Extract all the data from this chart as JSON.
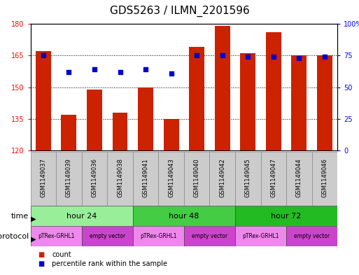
{
  "title": "GDS5263 / ILMN_2201596",
  "samples": [
    "GSM1149037",
    "GSM1149039",
    "GSM1149036",
    "GSM1149038",
    "GSM1149041",
    "GSM1149043",
    "GSM1149040",
    "GSM1149042",
    "GSM1149045",
    "GSM1149047",
    "GSM1149044",
    "GSM1149046"
  ],
  "counts": [
    167,
    137,
    149,
    138,
    150,
    135,
    169,
    179,
    166,
    176,
    165,
    165
  ],
  "percentiles": [
    75,
    62,
    64,
    62,
    64,
    61,
    75,
    75,
    74,
    74,
    73,
    74
  ],
  "ylim_left": [
    120,
    180
  ],
  "ylim_right": [
    0,
    100
  ],
  "yticks_left": [
    120,
    135,
    150,
    165,
    180
  ],
  "yticks_right": [
    0,
    25,
    50,
    75,
    100
  ],
  "ytick_labels_right": [
    "0",
    "25",
    "50",
    "75",
    "100%"
  ],
  "bar_color": "#cc2200",
  "dot_color": "#0000cc",
  "time_groups": [
    {
      "label": "hour 24",
      "start": 0,
      "end": 3,
      "color": "#99ee99"
    },
    {
      "label": "hour 48",
      "start": 4,
      "end": 7,
      "color": "#44cc44"
    },
    {
      "label": "hour 72",
      "start": 8,
      "end": 11,
      "color": "#22bb22"
    }
  ],
  "protocol_groups": [
    {
      "label": "pTRex-GRHL1",
      "start": 0,
      "end": 1,
      "color": "#ee88ee"
    },
    {
      "label": "empty vector",
      "start": 2,
      "end": 3,
      "color": "#cc44cc"
    },
    {
      "label": "pTRex-GRHL1",
      "start": 4,
      "end": 5,
      "color": "#ee88ee"
    },
    {
      "label": "empty vector",
      "start": 6,
      "end": 7,
      "color": "#cc44cc"
    },
    {
      "label": "pTRex-GRHL1",
      "start": 8,
      "end": 9,
      "color": "#ee88ee"
    },
    {
      "label": "empty vector",
      "start": 10,
      "end": 11,
      "color": "#cc44cc"
    }
  ],
  "time_label": "time",
  "protocol_label": "protocol",
  "legend_count_label": "count",
  "legend_percentile_label": "percentile rank within the sample",
  "bg_color": "#ffffff",
  "title_fontsize": 11,
  "axis_fontsize": 7,
  "bar_width": 0.6
}
